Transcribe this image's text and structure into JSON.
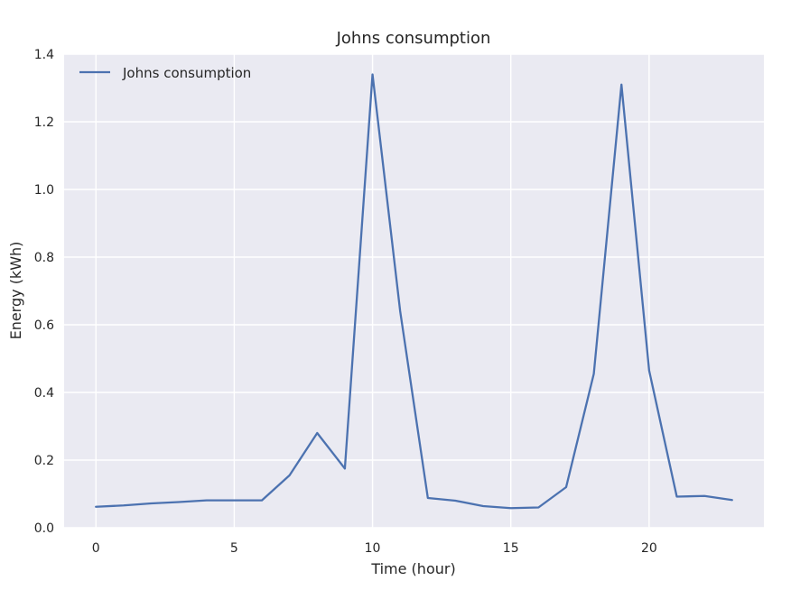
{
  "chart_data": {
    "type": "line",
    "title": "Johns consumption",
    "xlabel": "Time (hour)",
    "ylabel": "Energy (kWh)",
    "xlim": [
      -1.15,
      24.15
    ],
    "ylim": [
      0,
      1.4
    ],
    "xticks": [
      0,
      5,
      10,
      15,
      20
    ],
    "yticks": [
      0.0,
      0.2,
      0.4,
      0.6,
      0.8,
      1.0,
      1.2,
      1.4
    ],
    "xtick_labels": [
      "0",
      "5",
      "10",
      "15",
      "20"
    ],
    "ytick_labels": [
      "0.0",
      "0.2",
      "0.4",
      "0.6",
      "0.8",
      "1.0",
      "1.2",
      "1.4"
    ],
    "grid": true,
    "legend_position": "top-left",
    "colors": {
      "series": "#4c72b0",
      "plot_bg": "#eaeaf2",
      "grid": "#ffffff"
    },
    "series": [
      {
        "name": "Johns consumption",
        "x": [
          0,
          1,
          2,
          3,
          4,
          5,
          6,
          7,
          8,
          9,
          10,
          11,
          12,
          13,
          14,
          15,
          16,
          17,
          18,
          19,
          20,
          21,
          22,
          23
        ],
        "values": [
          0.062,
          0.066,
          0.072,
          0.076,
          0.081,
          0.081,
          0.081,
          0.155,
          0.28,
          0.175,
          1.34,
          0.64,
          0.088,
          0.08,
          0.064,
          0.058,
          0.06,
          0.12,
          0.455,
          1.31,
          0.465,
          0.092,
          0.094,
          0.082
        ]
      }
    ]
  }
}
